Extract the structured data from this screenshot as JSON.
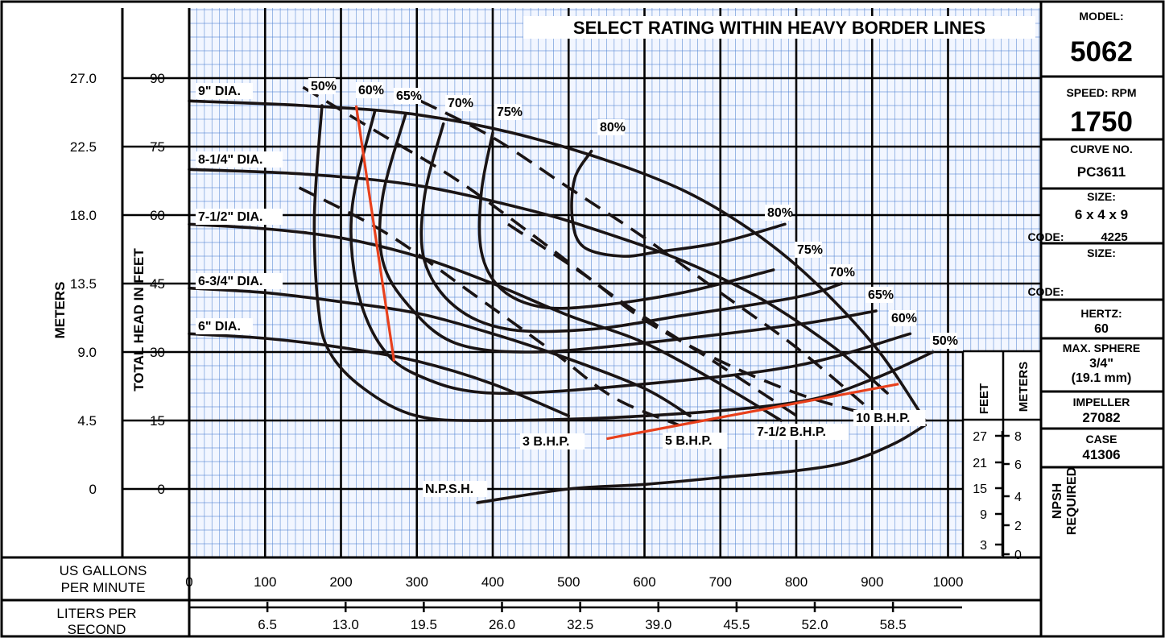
{
  "chart_data": {
    "type": "line",
    "title": "SELECT RATING WITHIN HEAVY BORDER LINES",
    "xlabel": "US GALLONS PER MINUTE",
    "x2label": "LITERS PER SECOND",
    "ylabel": "TOTAL HEAD IN FEET",
    "y2label": "METERS",
    "xlim": [
      0,
      1000
    ],
    "ylim": [
      -15,
      105
    ],
    "x_ticks": [
      "0",
      "100",
      "200",
      "300",
      "400",
      "500",
      "600",
      "700",
      "800",
      "900",
      "1000"
    ],
    "lps_ticks": [
      "6.5",
      "13.0",
      "19.5",
      "26.0",
      "32.5",
      "39.0",
      "45.5",
      "52.0",
      "58.5"
    ],
    "ft_ticks": [
      "0",
      "15",
      "30",
      "45",
      "60",
      "75",
      "90"
    ],
    "m_ticks": [
      "0",
      "4.5",
      "9.0",
      "13.5",
      "18.0",
      "22.5",
      "27.0"
    ],
    "npsh": {
      "title": "NPSH REQUIRED",
      "feet_label": "FEET",
      "meters_label": "METERS",
      "feet_ticks": [
        "27",
        "21",
        "15",
        "9",
        "3"
      ],
      "meter_ticks": [
        "8",
        "6",
        "4",
        "2",
        "0"
      ]
    },
    "diameters": [
      {
        "label": "9\" DIA.",
        "points": [
          [
            0,
            85
          ],
          [
            150,
            84
          ],
          [
            300,
            82
          ],
          [
            450,
            77
          ],
          [
            600,
            69
          ],
          [
            700,
            61
          ],
          [
            800,
            49
          ],
          [
            900,
            32
          ],
          [
            970,
            15
          ]
        ]
      },
      {
        "label": "8-1/4\" DIA.",
        "points": [
          [
            0,
            70
          ],
          [
            150,
            69
          ],
          [
            300,
            66.5
          ],
          [
            450,
            61
          ],
          [
            550,
            56
          ],
          [
            650,
            50
          ],
          [
            750,
            42
          ],
          [
            850,
            31
          ],
          [
            920,
            21
          ]
        ]
      },
      {
        "label": "7-1/2\" DIA.",
        "points": [
          [
            0,
            58
          ],
          [
            100,
            57
          ],
          [
            200,
            55
          ],
          [
            300,
            51
          ],
          [
            400,
            45
          ],
          [
            500,
            38
          ],
          [
            600,
            32
          ],
          [
            700,
            23
          ],
          [
            780,
            15
          ]
        ]
      },
      {
        "label": "6-3/4\" DIA.",
        "points": [
          [
            0,
            44
          ],
          [
            100,
            43
          ],
          [
            200,
            41
          ],
          [
            300,
            38.5
          ],
          [
            400,
            34
          ],
          [
            500,
            28.5
          ],
          [
            600,
            22
          ],
          [
            660,
            16
          ]
        ]
      },
      {
        "label": "6\" DIA.",
        "points": [
          [
            0,
            34
          ],
          [
            100,
            33
          ],
          [
            200,
            31
          ],
          [
            300,
            28
          ],
          [
            400,
            23
          ],
          [
            500,
            16
          ]
        ]
      }
    ],
    "efficiency": [
      {
        "label": "50%",
        "points": [
          [
            175,
            84
          ],
          [
            165,
            60
          ],
          [
            170,
            40
          ],
          [
            185,
            30
          ],
          [
            230,
            22
          ],
          [
            300,
            16
          ],
          [
            400,
            15
          ],
          [
            600,
            16
          ],
          [
            800,
            19
          ],
          [
            900,
            24
          ],
          [
            980,
            30
          ]
        ]
      },
      {
        "label": "60%",
        "points": [
          [
            245,
            83
          ],
          [
            215,
            62
          ],
          [
            220,
            45
          ],
          [
            250,
            32
          ],
          [
            300,
            25
          ],
          [
            400,
            21
          ],
          [
            600,
            23
          ],
          [
            800,
            27
          ],
          [
            950,
            34
          ]
        ]
      },
      {
        "label": "65%",
        "points": [
          [
            285,
            82
          ],
          [
            255,
            64
          ],
          [
            255,
            50
          ],
          [
            290,
            40
          ],
          [
            350,
            32
          ],
          [
            450,
            30
          ],
          [
            600,
            32
          ],
          [
            800,
            36
          ],
          [
            905,
            39
          ]
        ]
      },
      {
        "label": "70%",
        "points": [
          [
            335,
            80
          ],
          [
            310,
            64
          ],
          [
            310,
            50
          ],
          [
            350,
            40
          ],
          [
            420,
            35
          ],
          [
            530,
            35
          ],
          [
            650,
            38
          ],
          [
            800,
            42
          ],
          [
            860,
            45
          ]
        ]
      },
      {
        "label": "75%",
        "points": [
          [
            400,
            78
          ],
          [
            385,
            65
          ],
          [
            385,
            52
          ],
          [
            410,
            44
          ],
          [
            460,
            40
          ],
          [
            530,
            40
          ],
          [
            650,
            43
          ],
          [
            770,
            48
          ]
        ]
      },
      {
        "label": "80%",
        "points": [
          [
            530,
            74
          ],
          [
            508,
            68
          ],
          [
            505,
            59
          ],
          [
            520,
            53
          ],
          [
            570,
            51
          ],
          [
            620,
            52
          ],
          [
            700,
            54
          ],
          [
            785,
            58
          ]
        ]
      }
    ],
    "power": [
      {
        "label": "3 B.H.P.",
        "points": [
          [
            145,
            66
          ],
          [
            260,
            56
          ],
          [
            380,
            42
          ],
          [
            480,
            30
          ],
          [
            560,
            20
          ],
          [
            645,
            14
          ]
        ]
      },
      {
        "label": "5 B.H.P.",
        "points": [
          [
            150,
            88
          ],
          [
            250,
            78
          ],
          [
            350,
            68
          ],
          [
            450,
            56
          ],
          [
            570,
            41
          ],
          [
            700,
            27
          ],
          [
            810,
            15
          ]
        ]
      },
      {
        "label": "7-1/2 B.H.P.",
        "points": [
          [
            305,
            85
          ],
          [
            400,
            77
          ],
          [
            500,
            66
          ],
          [
            600,
            55
          ],
          [
            700,
            43
          ],
          [
            800,
            31
          ],
          [
            900,
            17
          ]
        ]
      },
      {
        "label": "10 B.H.P.",
        "points": [
          [
            420,
            58
          ],
          [
            520,
            47
          ],
          [
            600,
            37
          ],
          [
            700,
            28
          ],
          [
            800,
            21
          ],
          [
            880,
            17
          ]
        ]
      }
    ],
    "npsh_curve": {
      "label": "N.P.S.H.",
      "points": [
        [
          380,
          -3
        ],
        [
          500,
          0
        ],
        [
          600,
          1
        ],
        [
          700,
          2.5
        ],
        [
          800,
          4
        ],
        [
          870,
          6
        ],
        [
          930,
          10
        ],
        [
          970,
          14
        ]
      ]
    },
    "limit_lines": [
      {
        "points": [
          [
            220,
            84
          ],
          [
            270,
            28
          ]
        ]
      },
      {
        "points": [
          [
            550,
            11
          ],
          [
            935,
            23
          ]
        ]
      }
    ]
  },
  "info_panel": {
    "model_label": "MODEL:",
    "model": "5062",
    "speed_label": "SPEED: RPM",
    "speed": "1750",
    "curve_label": "CURVE NO.",
    "curve": "PC3611",
    "size_label": "SIZE:",
    "size": "6 x 4 x 9",
    "code_label": "CODE:",
    "code": "4225",
    "size2_label": "SIZE:",
    "code2_label": "CODE:",
    "hertz_label": "HERTZ:",
    "hertz": "60",
    "sphere_label": "MAX. SPHERE",
    "sphere_in": "3/4\"",
    "sphere_mm": "(19.1 mm)",
    "impeller_label": "IMPELLER",
    "impeller": "27082",
    "case_label": "CASE",
    "case": "41306"
  },
  "colors": {
    "grid_minor": "#4a7fd0",
    "grid_bg": "#f2f6ff",
    "curve": "#1a1414",
    "limit": "#e8401c"
  }
}
